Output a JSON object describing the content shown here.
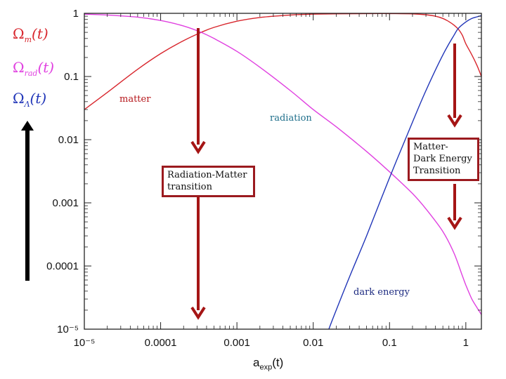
{
  "legend": {
    "items": [
      {
        "symbol": "Ω",
        "sub": "m",
        "arg": "(t)",
        "color": "#d8262d"
      },
      {
        "symbol": "Ω",
        "sub": "rad",
        "arg": "(t)",
        "color": "#e040e0"
      },
      {
        "symbol": "Ω",
        "sub": "Λ",
        "arg": "(t)",
        "color": "#2035b8"
      }
    ]
  },
  "annotations": {
    "matter": "matter",
    "radiation": "radiation",
    "dark_energy": "dark energy",
    "rad_matter_line1": "Radiation-Matter",
    "rad_matter_line2": "transition",
    "matter_de_line1": "Matter-",
    "matter_de_line2": "Dark Energy",
    "matter_de_line3": "Transition"
  },
  "colors": {
    "matter": "#d8262d",
    "radiation": "#e040e0",
    "dark_energy": "#2035b8",
    "arrow": "#a51515",
    "box_border": "#9b1a1f",
    "matter_label": "#b5161b",
    "radiation_label": "#1f6f8b",
    "dark_energy_label": "#1c2a80"
  },
  "chart_data": {
    "type": "line",
    "xlabel_base": "a",
    "xlabel_sub": "exp",
    "xlabel_arg": "(t)",
    "x_scale": "log",
    "y_scale": "log",
    "xlim": [
      1e-05,
      1.6
    ],
    "ylim": [
      1e-05,
      1
    ],
    "x_ticks": [
      "10⁻⁵",
      "0.0001",
      "0.001",
      "0.01",
      "0.1",
      "1"
    ],
    "y_ticks": [
      "10⁻⁵",
      "0.0001",
      "0.001",
      "0.01",
      "0.1",
      "1"
    ],
    "series": [
      {
        "key": "matter",
        "x": [
          1e-05,
          2e-05,
          5e-05,
          0.0001,
          0.0002,
          0.00034,
          0.0005,
          0.001,
          0.002,
          0.005,
          0.01,
          0.05,
          0.1,
          0.2,
          0.3,
          0.4,
          0.5,
          0.6,
          0.7,
          0.8,
          0.9,
          1.0,
          1.2,
          1.4,
          1.6
        ],
        "y": [
          0.03,
          0.056,
          0.13,
          0.23,
          0.37,
          0.5,
          0.6,
          0.75,
          0.86,
          0.94,
          0.97,
          0.99,
          0.99,
          0.98,
          0.95,
          0.9,
          0.83,
          0.74,
          0.65,
          0.56,
          0.45,
          0.33,
          0.22,
          0.15,
          0.1
        ]
      },
      {
        "key": "radiation",
        "x": [
          1e-05,
          2e-05,
          5e-05,
          0.0001,
          0.0002,
          0.00034,
          0.0005,
          0.001,
          0.002,
          0.005,
          0.01,
          0.02,
          0.05,
          0.1,
          0.2,
          0.3,
          0.5,
          0.7,
          0.9,
          1.0,
          1.2,
          1.4,
          1.6
        ],
        "y": [
          0.97,
          0.94,
          0.87,
          0.77,
          0.63,
          0.5,
          0.4,
          0.25,
          0.14,
          0.06,
          0.03,
          0.016,
          0.0065,
          0.0031,
          0.0014,
          0.0008,
          0.00035,
          0.00016,
          7e-05,
          5e-05,
          3e-05,
          2.2e-05,
          1.7e-05
        ]
      },
      {
        "key": "dark_energy",
        "x": [
          0.016,
          0.02,
          0.03,
          0.05,
          0.1,
          0.2,
          0.3,
          0.5,
          0.7,
          0.8,
          1.0,
          1.2,
          1.4,
          1.6
        ],
        "y": [
          1e-05,
          2e-05,
          6.8e-05,
          0.0003,
          0.0025,
          0.019,
          0.06,
          0.22,
          0.45,
          0.58,
          0.73,
          0.83,
          0.88,
          0.92
        ]
      }
    ]
  }
}
